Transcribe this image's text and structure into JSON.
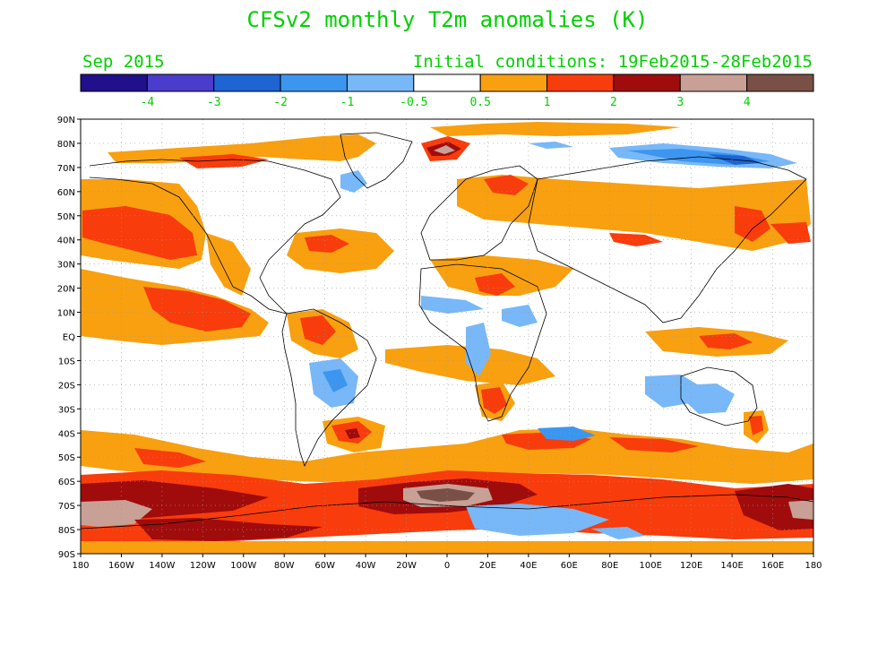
{
  "title": "CFSv2 monthly T2m anomalies (K)",
  "period": "Sep 2015",
  "initial_conditions": "Initial conditions: 19Feb2015-28Feb2015",
  "colorbar": {
    "colors": [
      "#20108c",
      "#4a3ccc",
      "#1e64d2",
      "#3c96f0",
      "#78b8f8",
      "#ffffff",
      "#f8a010",
      "#f83c0c",
      "#a00c0c",
      "#c8a096",
      "#7a5046"
    ],
    "labels": [
      "-4",
      "-3",
      "-2",
      "-1",
      "-0.5",
      "0.5",
      "1",
      "2",
      "3",
      "4"
    ]
  },
  "lat_ticks": [
    "90N",
    "80N",
    "70N",
    "60N",
    "50N",
    "40N",
    "30N",
    "20N",
    "10N",
    "EQ",
    "10S",
    "20S",
    "30S",
    "40S",
    "50S",
    "60S",
    "70S",
    "80S",
    "90S"
  ],
  "lon_ticks": [
    "180",
    "160W",
    "140W",
    "120W",
    "100W",
    "80W",
    "60W",
    "40W",
    "20W",
    "0",
    "20E",
    "40E",
    "60E",
    "80E",
    "100E",
    "120E",
    "140E",
    "160E",
    "180"
  ]
}
